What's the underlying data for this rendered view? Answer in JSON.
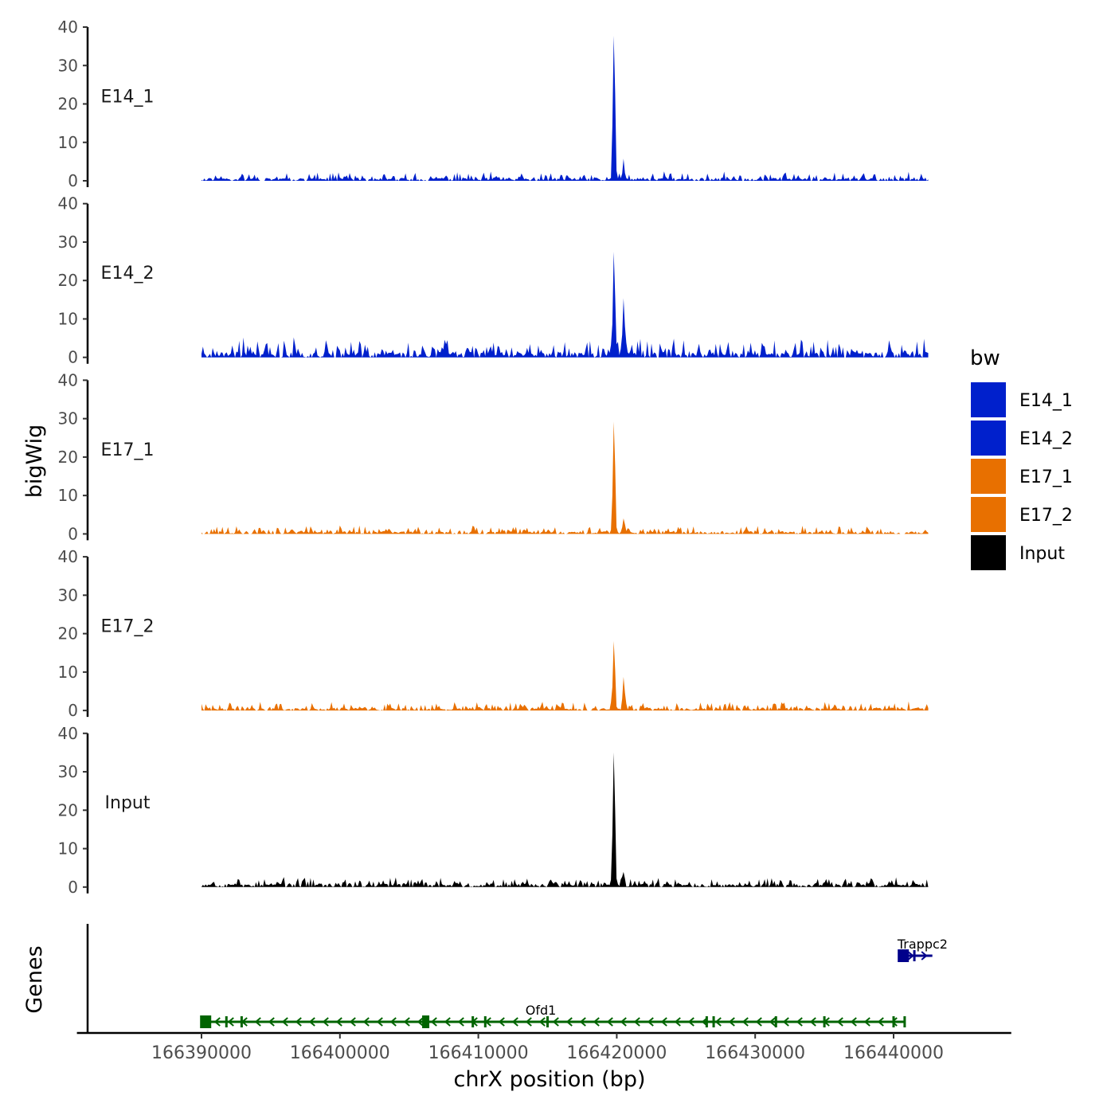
{
  "chart_data": {
    "type": "area",
    "ylabel": "bigWig",
    "genes_label": "Genes",
    "xlabel": "chrX position (bp)",
    "xlim": [
      166381000,
      166448500
    ],
    "x_ticks": [
      166390000,
      166400000,
      166410000,
      166420000,
      166430000,
      166440000
    ],
    "x_tick_labels": [
      "166390000",
      "166400000",
      "166410000",
      "166420000",
      "166430000",
      "166440000"
    ],
    "ylim": [
      0,
      40
    ],
    "y_ticks": [
      0,
      10,
      20,
      30,
      40
    ],
    "y_tick_labels": [
      "0",
      "10",
      "20",
      "30",
      "40"
    ],
    "data_range": [
      166390000,
      166442500
    ],
    "legend": {
      "title": "bw",
      "position": "right",
      "entries": [
        {
          "label": "E14_1",
          "color": "#0020CC"
        },
        {
          "label": "E14_2",
          "color": "#0020CC"
        },
        {
          "label": "E17_1",
          "color": "#E87000"
        },
        {
          "label": "E17_2",
          "color": "#E87000"
        },
        {
          "label": "Input",
          "color": "#000000"
        }
      ]
    },
    "tracks": [
      {
        "name": "E14_1",
        "color": "#0020CC",
        "baseline": 0.7,
        "noise": 0.9,
        "seed": 11,
        "peaks": [
          {
            "x": 166419800,
            "y": 38
          },
          {
            "x": 166420500,
            "y": 4
          }
        ]
      },
      {
        "name": "E14_2",
        "color": "#0020CC",
        "baseline": 1.4,
        "noise": 2.0,
        "seed": 23,
        "peaks": [
          {
            "x": 166419800,
            "y": 27
          },
          {
            "x": 166420500,
            "y": 15
          }
        ]
      },
      {
        "name": "E17_1",
        "color": "#E87000",
        "baseline": 0.6,
        "noise": 0.9,
        "seed": 37,
        "peaks": [
          {
            "x": 166419800,
            "y": 28
          },
          {
            "x": 166420500,
            "y": 4
          }
        ]
      },
      {
        "name": "E17_2",
        "color": "#E87000",
        "baseline": 0.6,
        "noise": 0.9,
        "seed": 41,
        "peaks": [
          {
            "x": 166419800,
            "y": 18
          },
          {
            "x": 166420500,
            "y": 8
          }
        ]
      },
      {
        "name": "Input",
        "color": "#000000",
        "baseline": 0.8,
        "noise": 1.0,
        "seed": 53,
        "peaks": [
          {
            "x": 166419800,
            "y": 35
          },
          {
            "x": 166420500,
            "y": 3
          }
        ]
      }
    ],
    "genes": [
      {
        "name": "Ofd1",
        "strand": "-",
        "color": "#006400",
        "start": 166390300,
        "end": 166440800,
        "exons": [
          166390300,
          166391800,
          166392900,
          166406200,
          166409600,
          166410500,
          166415000,
          166426500,
          166427000,
          166431500,
          166435000,
          166440000,
          166440800
        ]
      },
      {
        "name": "Trappc2",
        "strand": "+",
        "color": "#00008B",
        "start": 166440700,
        "end": 166442800,
        "exons": [
          166440700,
          166441500
        ]
      }
    ]
  }
}
